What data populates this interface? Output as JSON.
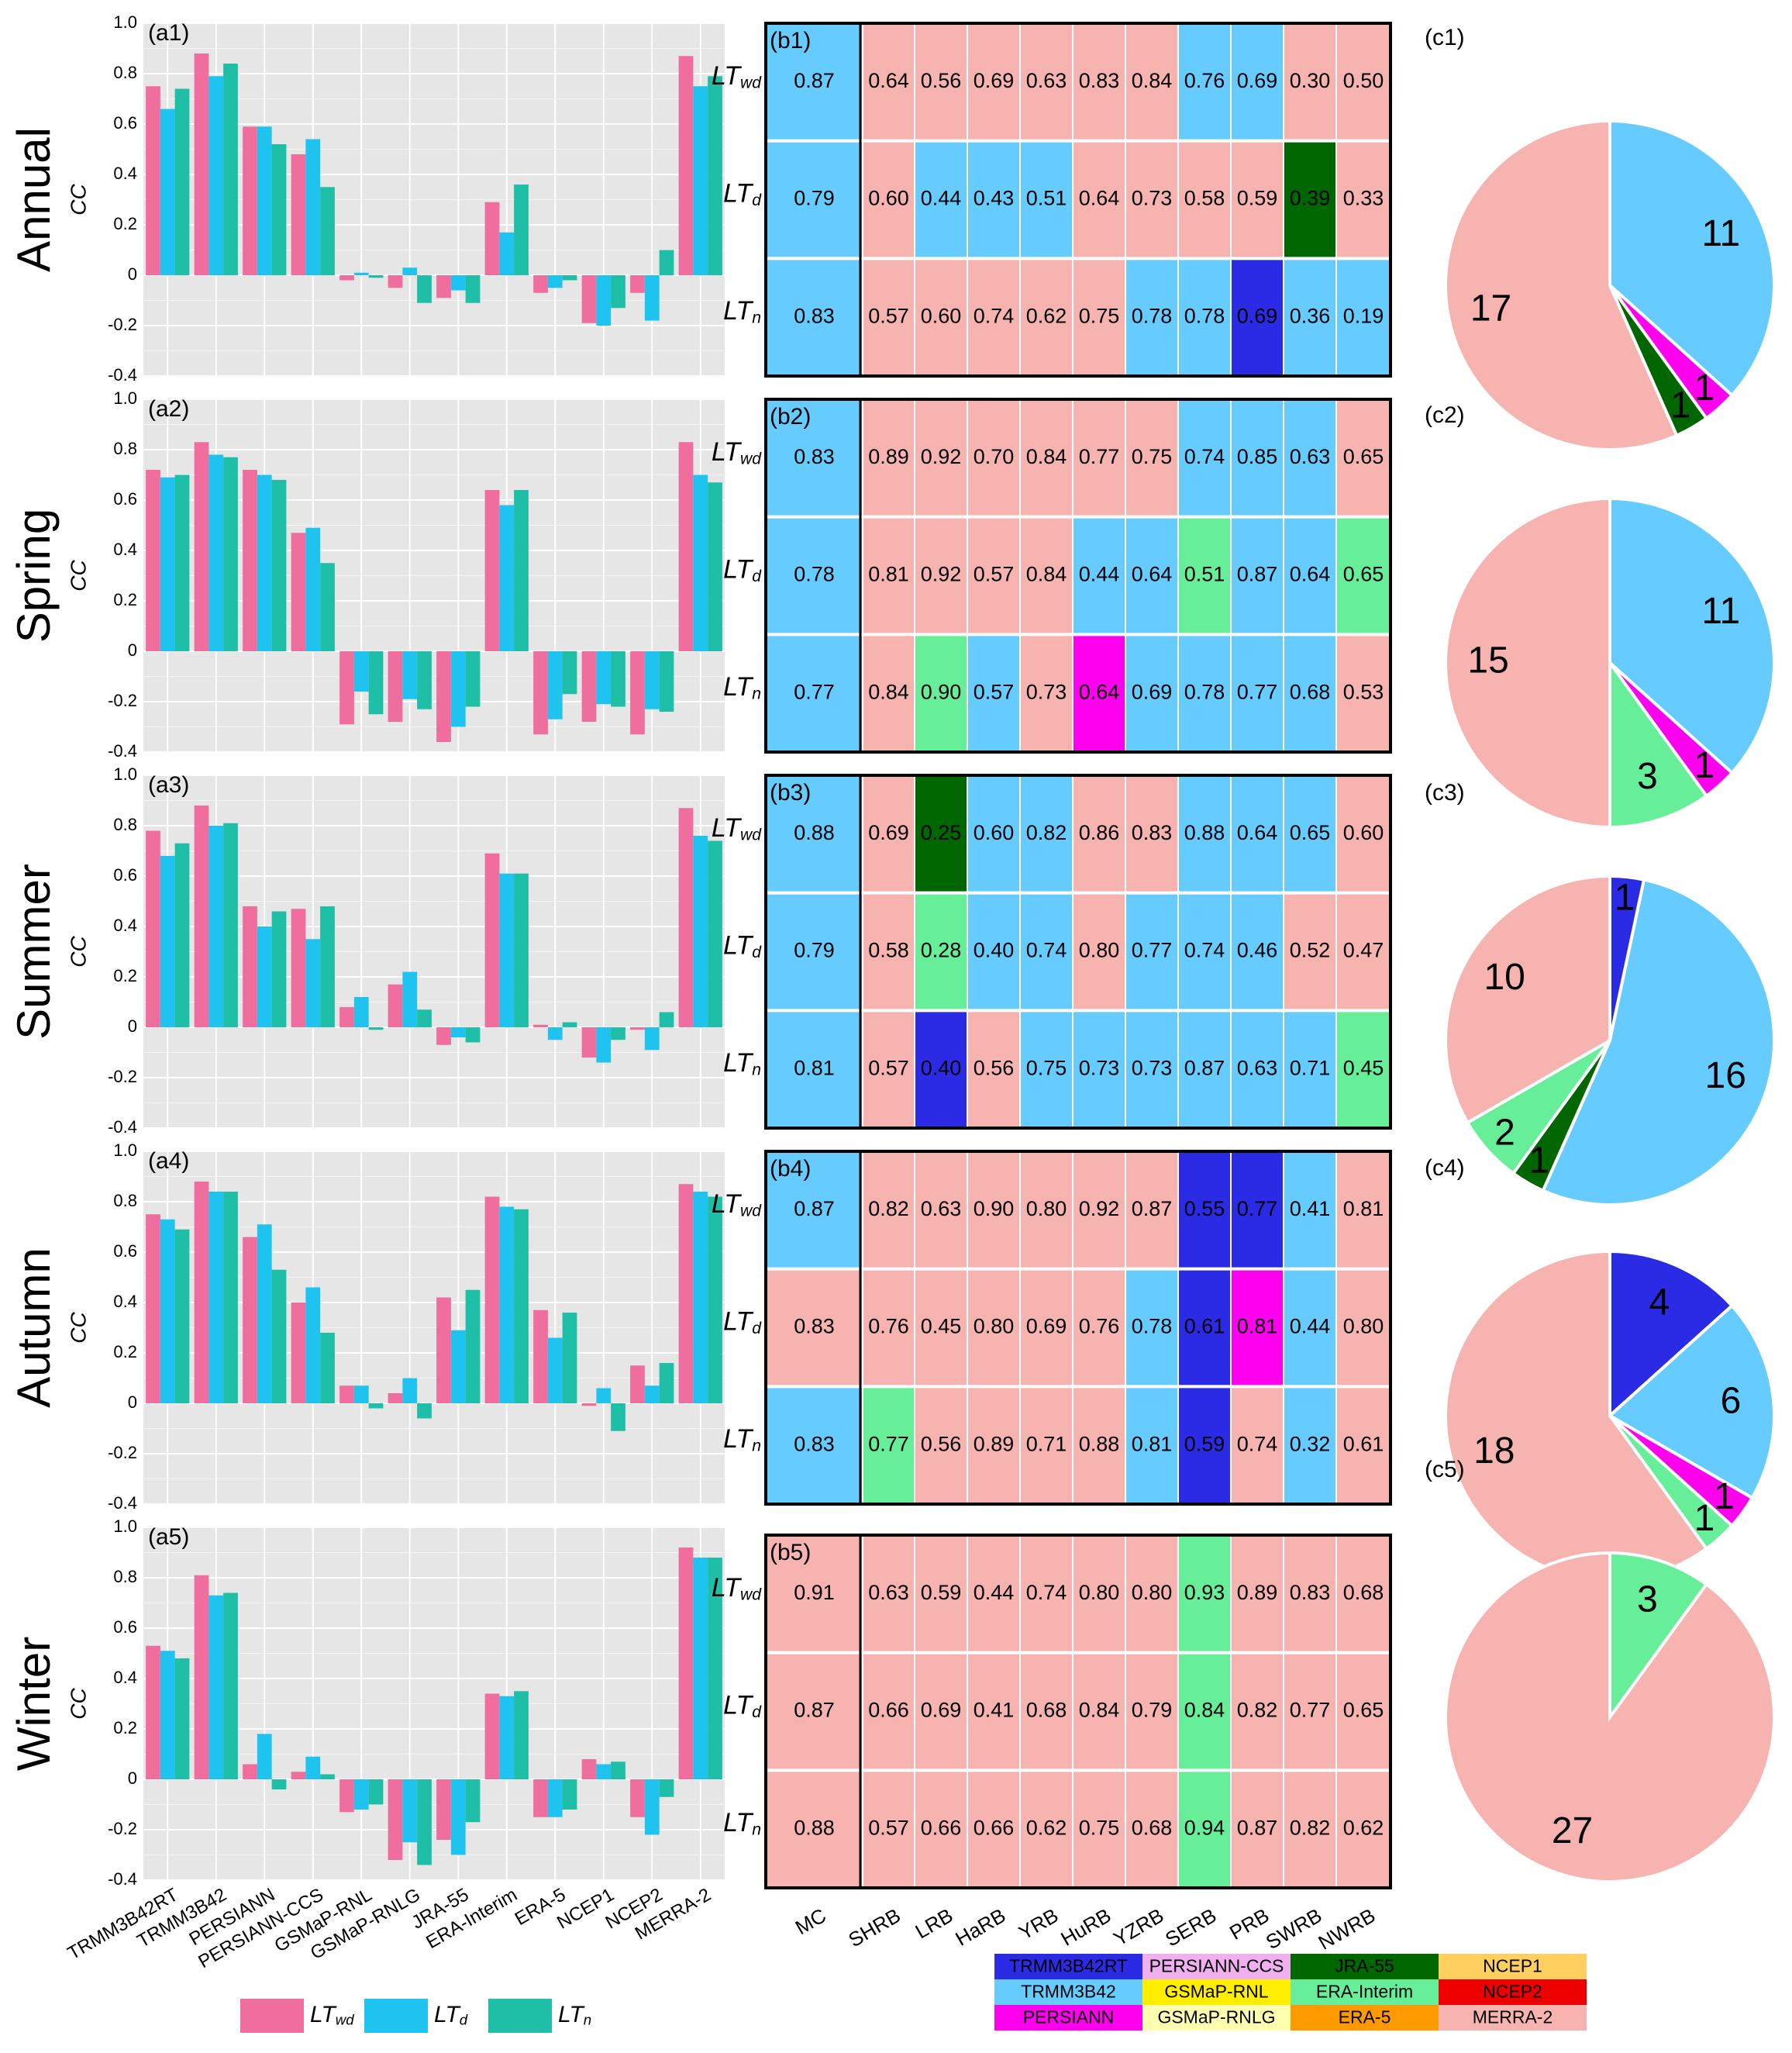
{
  "colors": {
    "pink": "#F06E9D",
    "blue": "#1EC3F0",
    "teal": "#1EBFA6",
    "panel_bg": "#E6E6E6"
  },
  "season_labels": [
    "Annual",
    "Spring",
    "Summer",
    "Autumn",
    "Winter"
  ],
  "ylabel": "CC",
  "bar_categories": [
    "TRMM3B42RT",
    "TRMM3B42",
    "PERSIANN",
    "PERSIANN-CCS",
    "GSMaP-RNL",
    "GSMaP-RNLG",
    "JRA-55",
    "ERA-Interim",
    "ERA-5",
    "NCEP1",
    "NCEP2",
    "MERRA-2"
  ],
  "yticks": [
    "1.0",
    "0.8",
    "0.6",
    "0.4",
    "0.2",
    "0",
    "-0.2",
    "-0.4"
  ],
  "legend": [
    {
      "label": "LT",
      "sub": "wd"
    },
    {
      "label": "LT",
      "sub": "d"
    },
    {
      "label": "LT",
      "sub": "n"
    }
  ],
  "heat_columns": [
    "MC",
    "SHRB",
    "LRB",
    "HaRB",
    "YRB",
    "HuRB",
    "YZRB",
    "SERB",
    "PRB",
    "SWRB",
    "NWRB"
  ],
  "heat_rows": [
    {
      "label": "LT",
      "sub": "wd"
    },
    {
      "label": "LT",
      "sub": "d"
    },
    {
      "label": "LT",
      "sub": "n"
    }
  ],
  "product_colors": {
    "TRMM3B42RT": "#2B2BE6",
    "TRMM3B42": "#66CCFF",
    "PERSIANN": "#FF00EE",
    "PERSIANN-CCS": "#F0B0F0",
    "GSMaP-RNL": "#FFEE00",
    "GSMaP-RNLG": "#FFFFB0",
    "JRA-55": "#006600",
    "ERA-Interim": "#66EE99",
    "ERA-5": "#FF9900",
    "NCEP1": "#FFD060",
    "NCEP2": "#EE0000",
    "MERRA-2": "#F6B3AF"
  },
  "product_legend": [
    [
      "TRMM3B42RT",
      "PERSIANN-CCS",
      "JRA-55",
      "NCEP1"
    ],
    [
      "TRMM3B42",
      "GSMaP-RNL",
      "ERA-Interim",
      "NCEP2"
    ],
    [
      "PERSIANN",
      "GSMaP-RNLG",
      "ERA-5",
      "MERRA-2"
    ]
  ],
  "chart_data": [
    {
      "type": "bar",
      "panel": "a1",
      "title": "(a1)",
      "season": "Annual",
      "categories_ref": "bar_categories",
      "ylim": [
        -0.4,
        1.0
      ],
      "series": [
        {
          "name": "LTwd",
          "values": [
            0.75,
            0.88,
            0.59,
            0.48,
            -0.02,
            -0.05,
            -0.09,
            0.29,
            -0.07,
            -0.19,
            -0.07,
            0.87
          ]
        },
        {
          "name": "LTd",
          "values": [
            0.66,
            0.79,
            0.59,
            0.54,
            0.01,
            0.03,
            -0.06,
            0.17,
            -0.05,
            -0.2,
            -0.18,
            0.75
          ]
        },
        {
          "name": "LTn",
          "values": [
            0.74,
            0.84,
            0.52,
            0.35,
            -0.01,
            -0.11,
            -0.11,
            0.36,
            -0.02,
            -0.13,
            0.1,
            0.79
          ]
        }
      ]
    },
    {
      "type": "bar",
      "panel": "a2",
      "title": "(a2)",
      "season": "Spring",
      "categories_ref": "bar_categories",
      "ylim": [
        -0.4,
        1.0
      ],
      "series": [
        {
          "name": "LTwd",
          "values": [
            0.72,
            0.83,
            0.72,
            0.47,
            -0.29,
            -0.28,
            -0.36,
            0.64,
            -0.33,
            -0.28,
            -0.33,
            0.83
          ]
        },
        {
          "name": "LTd",
          "values": [
            0.69,
            0.78,
            0.7,
            0.49,
            -0.16,
            -0.19,
            -0.3,
            0.58,
            -0.27,
            -0.21,
            -0.23,
            0.7
          ]
        },
        {
          "name": "LTn",
          "values": [
            0.7,
            0.77,
            0.68,
            0.35,
            -0.25,
            -0.23,
            -0.22,
            0.64,
            -0.17,
            -0.22,
            -0.24,
            0.67
          ]
        }
      ]
    },
    {
      "type": "bar",
      "panel": "a3",
      "title": "(a3)",
      "season": "Summer",
      "categories_ref": "bar_categories",
      "ylim": [
        -0.4,
        1.0
      ],
      "series": [
        {
          "name": "LTwd",
          "values": [
            0.78,
            0.88,
            0.48,
            0.47,
            0.08,
            0.17,
            -0.07,
            0.69,
            0.01,
            -0.12,
            -0.01,
            0.87
          ]
        },
        {
          "name": "LTd",
          "values": [
            0.68,
            0.8,
            0.4,
            0.35,
            0.12,
            0.22,
            -0.04,
            0.61,
            -0.05,
            -0.14,
            -0.09,
            0.76
          ]
        },
        {
          "name": "LTn",
          "values": [
            0.73,
            0.81,
            0.46,
            0.48,
            -0.01,
            0.07,
            -0.06,
            0.61,
            0.02,
            -0.05,
            0.06,
            0.74
          ]
        }
      ]
    },
    {
      "type": "bar",
      "panel": "a4",
      "title": "(a4)",
      "season": "Autumn",
      "categories_ref": "bar_categories",
      "ylim": [
        -0.4,
        1.0
      ],
      "series": [
        {
          "name": "LTwd",
          "values": [
            0.75,
            0.88,
            0.66,
            0.4,
            0.07,
            0.04,
            0.42,
            0.82,
            0.37,
            -0.01,
            0.15,
            0.87
          ]
        },
        {
          "name": "LTd",
          "values": [
            0.73,
            0.84,
            0.71,
            0.46,
            0.07,
            0.1,
            0.29,
            0.78,
            0.26,
            0.06,
            0.07,
            0.84
          ]
        },
        {
          "name": "LTn",
          "values": [
            0.69,
            0.84,
            0.53,
            0.28,
            -0.02,
            -0.06,
            0.45,
            0.77,
            0.36,
            -0.11,
            0.16,
            0.82
          ]
        }
      ]
    },
    {
      "type": "bar",
      "panel": "a5",
      "title": "(a5)",
      "season": "Winter",
      "categories_ref": "bar_categories",
      "ylim": [
        -0.4,
        1.0
      ],
      "series": [
        {
          "name": "LTwd",
          "values": [
            0.53,
            0.81,
            0.06,
            0.03,
            -0.13,
            -0.32,
            -0.24,
            0.34,
            -0.15,
            0.08,
            -0.15,
            0.92
          ]
        },
        {
          "name": "LTd",
          "values": [
            0.51,
            0.73,
            0.18,
            0.09,
            -0.12,
            -0.25,
            -0.3,
            0.33,
            -0.15,
            0.06,
            -0.22,
            0.88
          ]
        },
        {
          "name": "LTn",
          "values": [
            0.48,
            0.74,
            -0.04,
            0.02,
            -0.1,
            -0.34,
            -0.17,
            0.35,
            -0.12,
            0.07,
            -0.07,
            0.88
          ]
        }
      ]
    },
    {
      "type": "heatmap",
      "panel": "b1",
      "title": "(b1)",
      "season": "Annual",
      "values": [
        [
          "0.87",
          "0.64",
          "0.56",
          "0.69",
          "0.63",
          "0.83",
          "0.84",
          "0.76",
          "0.69",
          "0.30",
          "0.50"
        ],
        [
          "0.79",
          "0.60",
          "0.44",
          "0.43",
          "0.51",
          "0.64",
          "0.73",
          "0.58",
          "0.59",
          "0.39",
          "0.33"
        ],
        [
          "0.83",
          "0.57",
          "0.60",
          "0.74",
          "0.62",
          "0.75",
          "0.78",
          "0.78",
          "0.69",
          "0.36",
          "0.19"
        ]
      ],
      "best": [
        [
          "TRMM3B42",
          "MERRA-2",
          "MERRA-2",
          "MERRA-2",
          "MERRA-2",
          "MERRA-2",
          "MERRA-2",
          "TRMM3B42",
          "TRMM3B42",
          "MERRA-2",
          "MERRA-2"
        ],
        [
          "TRMM3B42",
          "MERRA-2",
          "TRMM3B42",
          "TRMM3B42",
          "TRMM3B42",
          "MERRA-2",
          "MERRA-2",
          "MERRA-2",
          "MERRA-2",
          "JRA-55",
          "MERRA-2"
        ],
        [
          "TRMM3B42",
          "MERRA-2",
          "MERRA-2",
          "MERRA-2",
          "MERRA-2",
          "MERRA-2",
          "TRMM3B42",
          "TRMM3B42",
          "TRMM3B42RT",
          "TRMM3B42",
          "TRMM3B42"
        ]
      ]
    },
    {
      "type": "heatmap",
      "panel": "b2",
      "title": "(b2)",
      "season": "Spring",
      "values": [
        [
          "0.83",
          "0.89",
          "0.92",
          "0.70",
          "0.84",
          "0.77",
          "0.75",
          "0.74",
          "0.85",
          "0.63",
          "0.65"
        ],
        [
          "0.78",
          "0.81",
          "0.92",
          "0.57",
          "0.84",
          "0.44",
          "0.64",
          "0.51",
          "0.87",
          "0.64",
          "0.65"
        ],
        [
          "0.77",
          "0.84",
          "0.90",
          "0.57",
          "0.73",
          "0.64",
          "0.69",
          "0.78",
          "0.77",
          "0.68",
          "0.53"
        ]
      ],
      "best": [
        [
          "TRMM3B42",
          "MERRA-2",
          "MERRA-2",
          "MERRA-2",
          "MERRA-2",
          "MERRA-2",
          "MERRA-2",
          "TRMM3B42",
          "TRMM3B42",
          "TRMM3B42",
          "MERRA-2"
        ],
        [
          "TRMM3B42",
          "MERRA-2",
          "MERRA-2",
          "MERRA-2",
          "MERRA-2",
          "TRMM3B42",
          "TRMM3B42",
          "ERA-Interim",
          "TRMM3B42",
          "TRMM3B42",
          "ERA-Interim"
        ],
        [
          "TRMM3B42",
          "MERRA-2",
          "ERA-Interim",
          "TRMM3B42",
          "MERRA-2",
          "PERSIANN",
          "TRMM3B42",
          "TRMM3B42",
          "TRMM3B42",
          "TRMM3B42",
          "MERRA-2"
        ]
      ]
    },
    {
      "type": "heatmap",
      "panel": "b3",
      "title": "(b3)",
      "season": "Summer",
      "values": [
        [
          "0.88",
          "0.69",
          "0.25",
          "0.60",
          "0.82",
          "0.86",
          "0.83",
          "0.88",
          "0.64",
          "0.65",
          "0.60"
        ],
        [
          "0.79",
          "0.58",
          "0.28",
          "0.40",
          "0.74",
          "0.80",
          "0.77",
          "0.74",
          "0.46",
          "0.52",
          "0.47"
        ],
        [
          "0.81",
          "0.57",
          "0.40",
          "0.56",
          "0.75",
          "0.73",
          "0.73",
          "0.87",
          "0.63",
          "0.71",
          "0.45"
        ]
      ],
      "best": [
        [
          "TRMM3B42",
          "MERRA-2",
          "JRA-55",
          "TRMM3B42",
          "TRMM3B42",
          "MERRA-2",
          "MERRA-2",
          "TRMM3B42",
          "TRMM3B42",
          "TRMM3B42",
          "MERRA-2"
        ],
        [
          "TRMM3B42",
          "MERRA-2",
          "ERA-Interim",
          "TRMM3B42",
          "TRMM3B42",
          "MERRA-2",
          "TRMM3B42",
          "TRMM3B42",
          "TRMM3B42",
          "MERRA-2",
          "MERRA-2"
        ],
        [
          "TRMM3B42",
          "MERRA-2",
          "TRMM3B42RT",
          "MERRA-2",
          "TRMM3B42",
          "TRMM3B42",
          "TRMM3B42",
          "TRMM3B42",
          "TRMM3B42",
          "TRMM3B42",
          "ERA-Interim"
        ]
      ]
    },
    {
      "type": "heatmap",
      "panel": "b4",
      "title": "(b4)",
      "season": "Autumn",
      "values": [
        [
          "0.87",
          "0.82",
          "0.63",
          "0.90",
          "0.80",
          "0.92",
          "0.87",
          "0.55",
          "0.77",
          "0.41",
          "0.81"
        ],
        [
          "0.83",
          "0.76",
          "0.45",
          "0.80",
          "0.69",
          "0.76",
          "0.78",
          "0.61",
          "0.81",
          "0.44",
          "0.80"
        ],
        [
          "0.83",
          "0.77",
          "0.56",
          "0.89",
          "0.71",
          "0.88",
          "0.81",
          "0.59",
          "0.74",
          "0.32",
          "0.61"
        ]
      ],
      "best": [
        [
          "TRMM3B42",
          "MERRA-2",
          "MERRA-2",
          "MERRA-2",
          "MERRA-2",
          "MERRA-2",
          "MERRA-2",
          "TRMM3B42RT",
          "TRMM3B42RT",
          "TRMM3B42",
          "MERRA-2"
        ],
        [
          "MERRA-2",
          "MERRA-2",
          "MERRA-2",
          "MERRA-2",
          "MERRA-2",
          "MERRA-2",
          "TRMM3B42",
          "TRMM3B42RT",
          "PERSIANN",
          "TRMM3B42",
          "MERRA-2"
        ],
        [
          "TRMM3B42",
          "ERA-Interim",
          "MERRA-2",
          "MERRA-2",
          "MERRA-2",
          "MERRA-2",
          "TRMM3B42",
          "TRMM3B42RT",
          "MERRA-2",
          "TRMM3B42",
          "MERRA-2"
        ]
      ]
    },
    {
      "type": "heatmap",
      "panel": "b5",
      "title": "(b5)",
      "season": "Winter",
      "values": [
        [
          "0.91",
          "0.63",
          "0.59",
          "0.44",
          "0.74",
          "0.80",
          "0.80",
          "0.93",
          "0.89",
          "0.83",
          "0.68"
        ],
        [
          "0.87",
          "0.66",
          "0.69",
          "0.41",
          "0.68",
          "0.84",
          "0.79",
          "0.84",
          "0.82",
          "0.77",
          "0.65"
        ],
        [
          "0.88",
          "0.57",
          "0.66",
          "0.66",
          "0.62",
          "0.75",
          "0.68",
          "0.94",
          "0.87",
          "0.82",
          "0.62"
        ]
      ],
      "best": [
        [
          "MERRA-2",
          "MERRA-2",
          "MERRA-2",
          "MERRA-2",
          "MERRA-2",
          "MERRA-2",
          "MERRA-2",
          "ERA-Interim",
          "MERRA-2",
          "MERRA-2",
          "MERRA-2"
        ],
        [
          "MERRA-2",
          "MERRA-2",
          "MERRA-2",
          "MERRA-2",
          "MERRA-2",
          "MERRA-2",
          "MERRA-2",
          "ERA-Interim",
          "MERRA-2",
          "MERRA-2",
          "MERRA-2"
        ],
        [
          "MERRA-2",
          "MERRA-2",
          "MERRA-2",
          "MERRA-2",
          "MERRA-2",
          "MERRA-2",
          "MERRA-2",
          "ERA-Interim",
          "MERRA-2",
          "MERRA-2",
          "MERRA-2"
        ]
      ]
    },
    {
      "type": "pie",
      "panel": "c1",
      "title": "(c1)",
      "season": "Annual",
      "slices": [
        {
          "product": "TRMM3B42",
          "label": "11",
          "value": 11
        },
        {
          "product": "PERSIANN",
          "label": "1",
          "value": 1
        },
        {
          "product": "JRA-55",
          "label": "1",
          "value": 1
        },
        {
          "product": "MERRA-2",
          "label": "17",
          "value": 17
        }
      ]
    },
    {
      "type": "pie",
      "panel": "c2",
      "title": "(c2)",
      "season": "Spring",
      "slices": [
        {
          "product": "TRMM3B42",
          "label": "11",
          "value": 11
        },
        {
          "product": "PERSIANN",
          "label": "1",
          "value": 1
        },
        {
          "product": "ERA-Interim",
          "label": "3",
          "value": 3
        },
        {
          "product": "MERRA-2",
          "label": "15",
          "value": 15
        }
      ]
    },
    {
      "type": "pie",
      "panel": "c3",
      "title": "(c3)",
      "season": "Summer",
      "slices": [
        {
          "product": "TRMM3B42RT",
          "label": "1",
          "value": 1
        },
        {
          "product": "TRMM3B42",
          "label": "16",
          "value": 16
        },
        {
          "product": "JRA-55",
          "label": "1",
          "value": 1
        },
        {
          "product": "ERA-Interim",
          "label": "2",
          "value": 2
        },
        {
          "product": "MERRA-2",
          "label": "10",
          "value": 10
        }
      ]
    },
    {
      "type": "pie",
      "panel": "c4",
      "title": "(c4)",
      "season": "Autumn",
      "slices": [
        {
          "product": "TRMM3B42RT",
          "label": "4",
          "value": 4
        },
        {
          "product": "TRMM3B42",
          "label": "6",
          "value": 6
        },
        {
          "product": "PERSIANN",
          "label": "1",
          "value": 1
        },
        {
          "product": "ERA-Interim",
          "label": "1",
          "value": 1
        },
        {
          "product": "MERRA-2",
          "label": "18",
          "value": 18
        }
      ]
    },
    {
      "type": "pie",
      "panel": "c5",
      "title": "(c5)",
      "season": "Winter",
      "slices": [
        {
          "product": "ERA-Interim",
          "label": "3",
          "value": 3
        },
        {
          "product": "MERRA-2",
          "label": "27",
          "value": 27
        }
      ]
    }
  ]
}
